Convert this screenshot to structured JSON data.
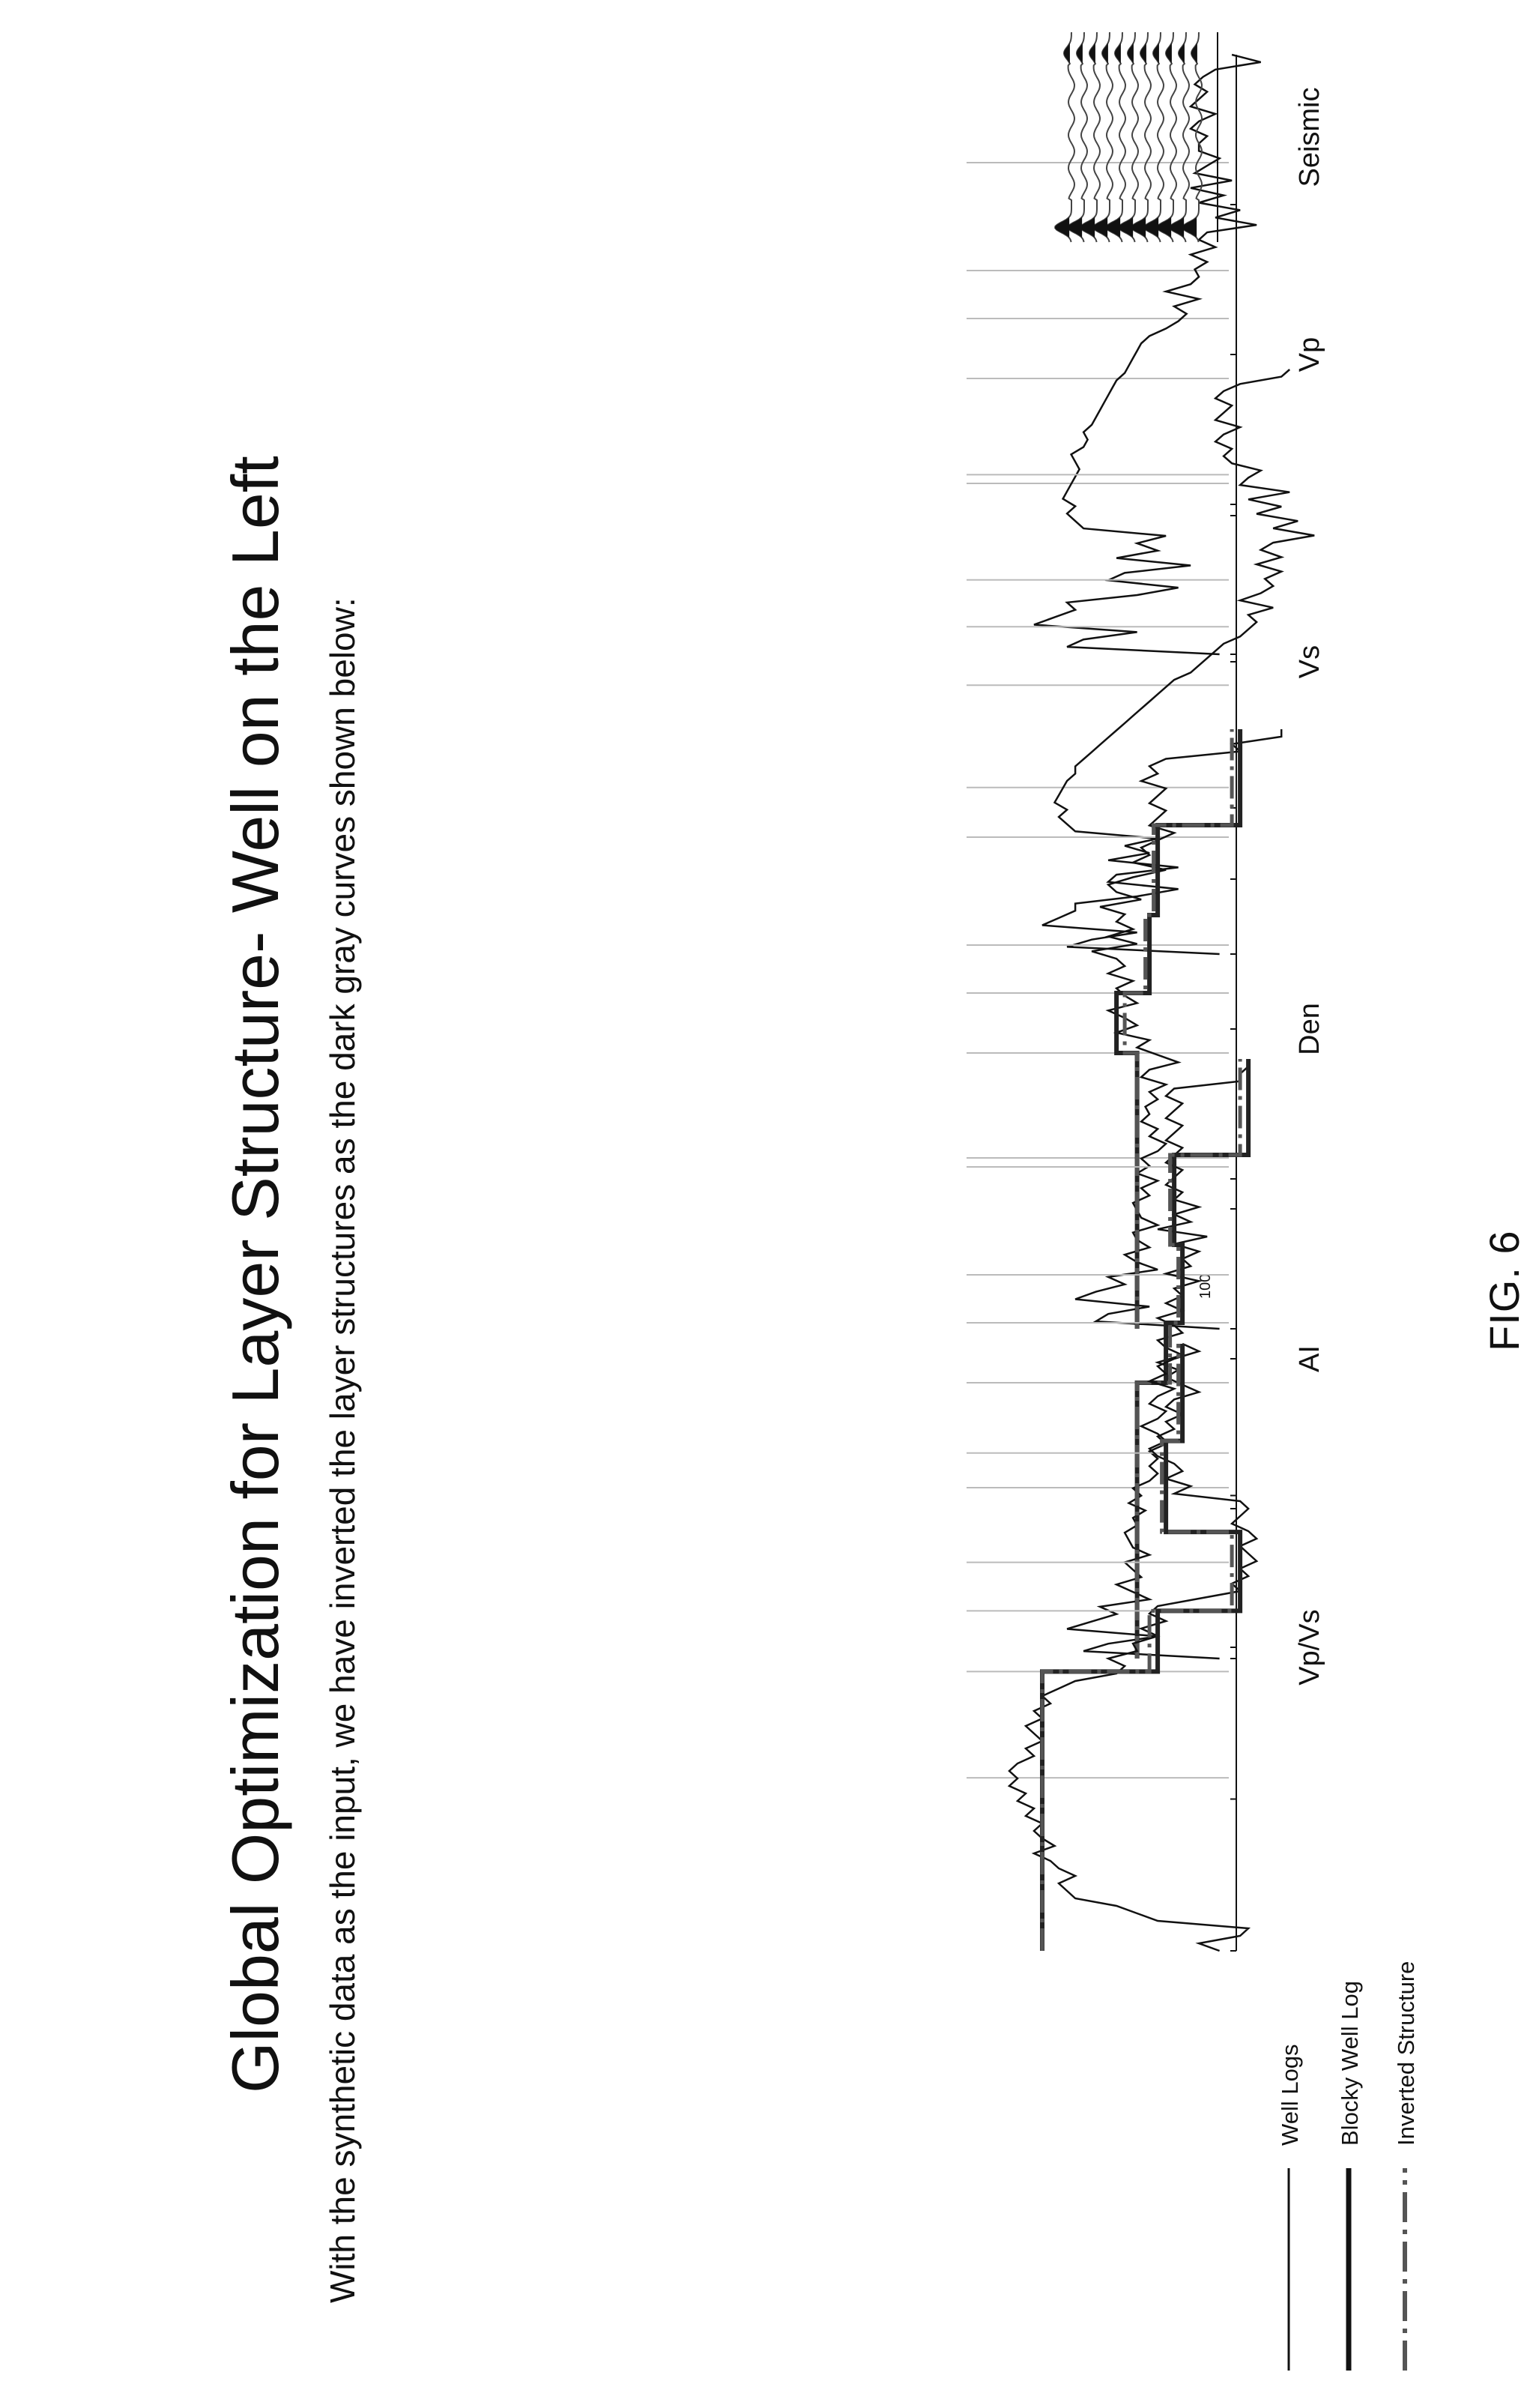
{
  "title": "Global Optimization for Layer Structure- Well on the Left",
  "subtitle": "With the synthetic data as the input, we have inverted the layer structures as the dark gray curves shown below:",
  "figure_label": "FIG. 6",
  "legend": [
    {
      "label": "Well Logs",
      "style": "thin"
    },
    {
      "label": "Blocky Well Log",
      "style": "thick"
    },
    {
      "label": "Inverted Structure",
      "style": "dashdot"
    }
  ],
  "colors": {
    "well_log": "#111111",
    "blocky": "#222222",
    "inverted": "#555555",
    "grid": "#bbbbbb",
    "seismic_fill": "#111111"
  },
  "chart_data": [
    {
      "type": "line",
      "xlabel": "Vp",
      "series": [
        {
          "values": [
            0.35,
            0.72,
            0.68,
            0.55,
            0.8,
            0.75,
            0.7,
            0.72,
            0.55,
            0.45,
            0.62,
            0.58,
            0.42,
            0.6,
            0.5,
            0.55,
            0.48,
            0.68,
            0.7,
            0.72,
            0.7,
            0.73,
            0.72,
            0.71,
            0.7,
            0.69,
            0.7,
            0.71,
            0.68,
            0.67,
            0.68,
            0.66,
            0.65,
            0.64,
            0.63,
            0.62,
            0.61,
            0.6,
            0.58,
            0.57,
            0.56,
            0.55,
            0.54,
            0.52,
            0.48,
            0.45,
            0.43,
            0.46,
            0.4,
            0.48,
            0.42,
            0.4,
            0.41,
            0.38,
            0.42,
            0.36,
            0.4,
            0.38,
            0.26,
            0.36,
            0.3,
            0.4,
            0.34,
            0.42,
            0.32,
            0.41,
            0.38,
            0.35,
            0.4,
            0.4,
            0.38,
            0.42,
            0.4,
            0.36,
            0.42,
            0.4,
            0.38,
            0.41,
            0.39,
            0.36,
            0.25,
            0.32
          ]
        }
      ]
    },
    {
      "type": "line",
      "xlabel": "Vs",
      "series": [
        {
          "values": [
            0.35,
            0.72,
            0.66,
            0.55,
            0.78,
            0.74,
            0.7,
            0.7,
            0.55,
            0.45,
            0.62,
            0.6,
            0.45,
            0.62,
            0.52,
            0.58,
            0.5,
            0.7,
            0.72,
            0.74,
            0.72,
            0.75,
            0.74,
            0.73,
            0.72,
            0.7,
            0.7,
            0.68,
            0.66,
            0.64,
            0.62,
            0.6,
            0.58,
            0.56,
            0.54,
            0.52,
            0.5,
            0.48,
            0.46,
            0.42,
            0.4,
            0.38,
            0.36,
            0.34,
            0.3,
            0.28,
            0.26,
            0.28,
            0.22,
            0.3,
            0.25,
            0.22,
            0.24,
            0.2,
            0.26,
            0.2,
            0.25,
            0.22,
            0.12,
            0.22,
            0.16,
            0.26,
            0.2,
            0.28,
            0.18,
            0.3,
            0.28,
            0.25,
            0.32,
            0.34,
            0.32,
            0.36,
            0.34,
            0.3,
            0.36,
            0.34,
            0.32,
            0.36,
            0.34,
            0.3,
            0.2,
            0.18
          ]
        }
      ]
    },
    {
      "type": "line",
      "xlabel": "Den",
      "annotations": [
        "100"
      ],
      "series": [
        {
          "name": "Well Logs",
          "values": [
            0.35,
            0.65,
            0.62,
            0.52,
            0.7,
            0.65,
            0.58,
            0.62,
            0.5,
            0.55,
            0.58,
            0.52,
            0.55,
            0.56,
            0.5,
            0.54,
            0.55,
            0.56,
            0.52,
            0.54,
            0.5,
            0.55,
            0.52,
            0.54,
            0.5,
            0.48,
            0.52,
            0.5,
            0.54,
            0.52,
            0.53,
            0.5,
            0.52,
            0.48,
            0.54,
            0.52,
            0.45,
            0.5,
            0.55,
            0.52,
            0.6,
            0.55,
            0.58,
            0.62,
            0.55,
            0.58,
            0.6,
            0.56,
            0.62,
            0.58,
            0.6,
            0.66,
            0.55,
            0.62,
            0.56,
            0.6,
            0.58,
            0.64,
            0.54,
            0.6,
            0.62,
            0.56,
            0.48,
            0.56,
            0.52,
            0.54,
            0.5,
            0.46,
            0.52,
            0.5,
            0.48,
            0.52,
            0.5,
            0.48,
            0.54,
            0.5,
            0.52,
            0.48,
            0.3,
            0.32,
            0.2,
            0.2
          ]
        },
        {
          "name": "Blocky Well Log",
          "values": [
            0.55,
            0.55,
            0.55,
            0.55,
            0.55,
            0.55,
            0.55,
            0.6,
            0.6,
            0.52,
            0.52,
            0.52,
            0.5,
            0.5,
            0.5,
            0.5,
            0.5,
            0.3,
            0.3
          ]
        },
        {
          "name": "Inverted Structure",
          "values": [
            0.55,
            0.55,
            0.55,
            0.55,
            0.55,
            0.55,
            0.55,
            0.58,
            0.58,
            0.53,
            0.53,
            0.53,
            0.51,
            0.51,
            0.51,
            0.51,
            0.51,
            0.32,
            0.32
          ]
        }
      ]
    },
    {
      "type": "line",
      "xlabel": "AI",
      "series": [
        {
          "name": "Well Logs",
          "values": [
            0.35,
            0.68,
            0.62,
            0.5,
            0.72,
            0.66,
            0.6,
            0.64,
            0.52,
            0.56,
            0.6,
            0.54,
            0.56,
            0.58,
            0.52,
            0.56,
            0.57,
            0.58,
            0.55,
            0.56,
            0.53,
            0.57,
            0.54,
            0.56,
            0.52,
            0.5,
            0.52,
            0.5,
            0.52,
            0.48,
            0.5,
            0.46,
            0.48,
            0.44,
            0.48,
            0.46,
            0.4,
            0.44,
            0.48,
            0.45,
            0.5,
            0.44,
            0.48,
            0.5,
            0.44,
            0.46,
            0.5,
            0.44,
            0.48,
            0.44,
            0.46,
            0.4,
            0.48,
            0.42,
            0.44,
            0.4,
            0.46,
            0.38,
            0.5,
            0.42,
            0.46,
            0.4,
            0.46,
            0.44,
            0.48,
            0.46,
            0.44,
            0.48,
            0.46,
            0.44,
            0.48,
            0.46,
            0.44,
            0.48,
            0.46,
            0.44,
            0.48,
            0.46,
            0.3,
            0.3,
            0.28,
            0.28
          ]
        },
        {
          "name": "Blocky Well Log",
          "values": [
            0.55,
            0.55,
            0.55,
            0.55,
            0.55,
            0.55,
            0.55,
            0.48,
            0.48,
            0.44,
            0.44,
            0.44,
            0.46,
            0.46,
            0.46,
            0.46,
            0.46,
            0.28,
            0.28
          ]
        },
        {
          "name": "Inverted Structure",
          "values": [
            0.55,
            0.55,
            0.55,
            0.55,
            0.55,
            0.55,
            0.55,
            0.47,
            0.47,
            0.45,
            0.45,
            0.45,
            0.47,
            0.47,
            0.47,
            0.47,
            0.47,
            0.3,
            0.3
          ]
        }
      ]
    },
    {
      "type": "line",
      "xlabel": "Vp/Vs",
      "series": [
        {
          "name": "Well Logs",
          "values": [
            0.35,
            0.4,
            0.3,
            0.28,
            0.5,
            0.55,
            0.6,
            0.7,
            0.72,
            0.74,
            0.7,
            0.74,
            0.76,
            0.8,
            0.75,
            0.78,
            0.8,
            0.78,
            0.82,
            0.8,
            0.84,
            0.82,
            0.86,
            0.84,
            0.86,
            0.84,
            0.8,
            0.82,
            0.78,
            0.8,
            0.82,
            0.78,
            0.8,
            0.76,
            0.78,
            0.74,
            0.7,
            0.6,
            0.58,
            0.62,
            0.55,
            0.56,
            0.5,
            0.54,
            0.48,
            0.52,
            0.5,
            0.4,
            0.3,
            0.32,
            0.28,
            0.3,
            0.26,
            0.28,
            0.3,
            0.26,
            0.28,
            0.32,
            0.3,
            0.28,
            0.3,
            0.46,
            0.42,
            0.48,
            0.44,
            0.46,
            0.5,
            0.52,
            0.48,
            0.5,
            0.54,
            0.5,
            0.48,
            0.52,
            0.5,
            0.46,
            0.52,
            0.48,
            0.5,
            0.46,
            0.4,
            0.44
          ]
        },
        {
          "name": "Blocky Well Log",
          "values": [
            0.78,
            0.78,
            0.78,
            0.78,
            0.78,
            0.78,
            0.78,
            0.5,
            0.5,
            0.3,
            0.3,
            0.3,
            0.48,
            0.48,
            0.48,
            0.48,
            0.48,
            0.44,
            0.44
          ]
        },
        {
          "name": "Inverted Structure",
          "values": [
            0.78,
            0.78,
            0.78,
            0.78,
            0.78,
            0.78,
            0.78,
            0.52,
            0.52,
            0.32,
            0.32,
            0.32,
            0.49,
            0.49,
            0.49,
            0.49,
            0.49,
            0.45,
            0.45
          ]
        }
      ]
    },
    {
      "type": "line",
      "xlabel": "Seismic",
      "traces": 11
    }
  ]
}
